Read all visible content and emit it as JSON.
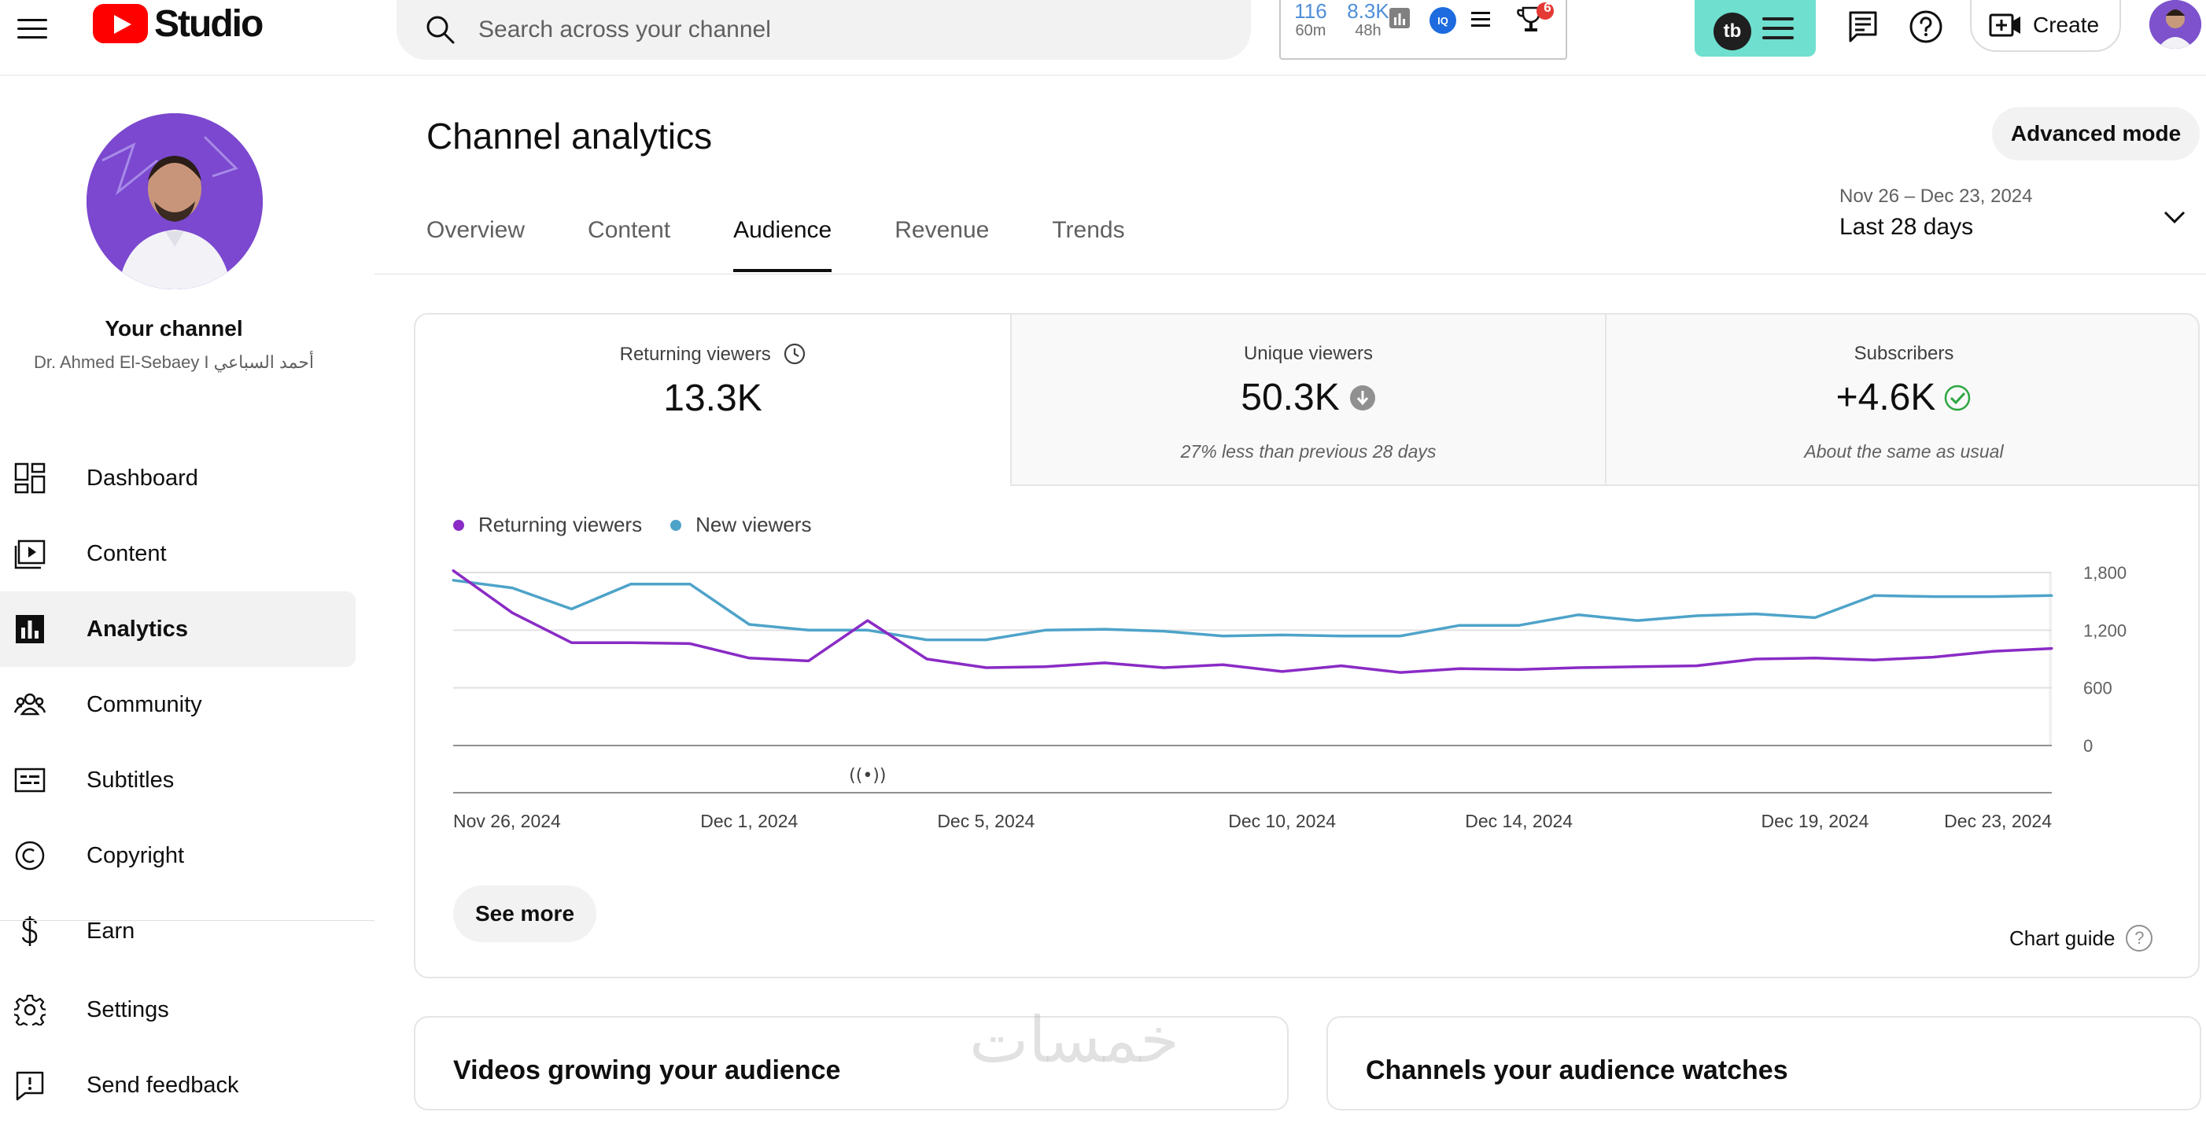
{
  "header": {
    "logo_text": "Studio",
    "search_placeholder": "Search across your channel",
    "ext_stats": [
      {
        "value": "116",
        "sub": "60m"
      },
      {
        "value": "8.3K",
        "sub": "48h"
      }
    ],
    "trophy_badge": "6",
    "create_label": "Create",
    "tubebuddy_label": "tb"
  },
  "sidebar": {
    "channel_label": "Your channel",
    "channel_name": "Dr. Ahmed El-Sebaey I أحمد السباعي",
    "items": [
      {
        "label": "Dashboard",
        "icon": "dashboard-icon"
      },
      {
        "label": "Content",
        "icon": "content-icon"
      },
      {
        "label": "Analytics",
        "icon": "analytics-icon",
        "active": true
      },
      {
        "label": "Community",
        "icon": "community-icon"
      },
      {
        "label": "Subtitles",
        "icon": "subtitles-icon"
      },
      {
        "label": "Copyright",
        "icon": "copyright-icon"
      },
      {
        "label": "Earn",
        "icon": "earn-icon"
      },
      {
        "label": "Settings",
        "icon": "settings-icon"
      },
      {
        "label": "Send feedback",
        "icon": "feedback-icon"
      }
    ]
  },
  "main": {
    "title": "Channel analytics",
    "advanced_mode": "Advanced mode",
    "tabs": [
      "Overview",
      "Content",
      "Audience",
      "Revenue",
      "Trends"
    ],
    "active_tab": "Audience",
    "date_range": {
      "dates": "Nov 26 – Dec 23, 2024",
      "label": "Last 28 days"
    },
    "metrics": [
      {
        "label": "Returning viewers",
        "value": "13.3K",
        "note": "",
        "icon": "clock-icon"
      },
      {
        "label": "Unique viewers",
        "value": "50.3K",
        "note": "27% less than previous 28 days",
        "icon": "down-arrow-icon"
      },
      {
        "label": "Subscribers",
        "value": "+4.6K",
        "note": "About the same as usual",
        "icon": "check-circle-icon"
      }
    ],
    "see_more": "See more",
    "chart_guide": "Chart guide",
    "bottom_cards": [
      "Videos growing your audience",
      "Channels your audience watches"
    ],
    "watermark": "خمسات"
  },
  "colors": {
    "returning": "#8a2bc5",
    "new": "#4ea3c9",
    "accent": "#ff0000",
    "tubebuddy": "#6fdfcf"
  },
  "chart_data": {
    "type": "line",
    "x": [
      "Nov 26",
      "Nov 27",
      "Nov 28",
      "Nov 29",
      "Nov 30",
      "Dec 1",
      "Dec 2",
      "Dec 3",
      "Dec 4",
      "Dec 5",
      "Dec 6",
      "Dec 7",
      "Dec 8",
      "Dec 9",
      "Dec 10",
      "Dec 11",
      "Dec 12",
      "Dec 13",
      "Dec 14",
      "Dec 15",
      "Dec 16",
      "Dec 17",
      "Dec 18",
      "Dec 19",
      "Dec 20",
      "Dec 21",
      "Dec 22",
      "Dec 23"
    ],
    "x_tick_labels": [
      "Nov 26, 2024",
      "Dec 1, 2024",
      "Dec 5, 2024",
      "Dec 10, 2024",
      "Dec 14, 2024",
      "Dec 19, 2024",
      "Dec 23, 2024"
    ],
    "x_tick_indices": [
      0,
      5,
      9,
      14,
      18,
      23,
      27
    ],
    "series": [
      {
        "name": "Returning viewers",
        "values": [
          1820,
          1380,
          1070,
          1070,
          1060,
          910,
          880,
          1300,
          900,
          810,
          820,
          860,
          810,
          840,
          770,
          830,
          760,
          800,
          790,
          810,
          820,
          830,
          900,
          910,
          890,
          920,
          980,
          1010
        ]
      },
      {
        "name": "New viewers",
        "values": [
          1720,
          1640,
          1420,
          1680,
          1680,
          1260,
          1200,
          1200,
          1100,
          1100,
          1200,
          1210,
          1190,
          1140,
          1150,
          1140,
          1140,
          1250,
          1250,
          1360,
          1300,
          1350,
          1370,
          1330,
          1560,
          1550,
          1550,
          1560
        ]
      }
    ],
    "y_ticks": [
      0,
      600,
      1200,
      1800
    ],
    "y_tick_labels": [
      "0",
      "600",
      "1,200",
      "1,800"
    ],
    "ylim": [
      0,
      1800
    ],
    "marker_index": 7,
    "marker_symbol": "((•))",
    "grid": true,
    "legend": "top-left"
  }
}
